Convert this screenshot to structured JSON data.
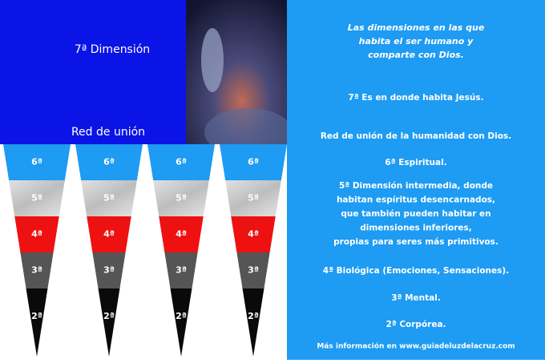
{
  "left_panel": {
    "title": "7ª Dimensión",
    "subtitle": "Red de unión"
  },
  "pennants": [
    {
      "bands": [
        "6ª",
        "5ª",
        "4ª",
        "3ª",
        "2ª"
      ]
    },
    {
      "bands": [
        "6ª",
        "5ª",
        "4ª",
        "3ª",
        "2ª"
      ]
    },
    {
      "bands": [
        "6ª",
        "5ª",
        "4ª",
        "3ª",
        "2ª"
      ]
    },
    {
      "bands": [
        "6ª",
        "5ª",
        "4ª",
        "3ª",
        "2ª"
      ]
    }
  ],
  "right_panel": {
    "heading": [
      "Las dimensiones en las que",
      "habita el ser humano y",
      "comparte con Dios."
    ],
    "items": [
      [
        "7ª Es en donde habita Jesús."
      ],
      [
        "Red de unión de la humanidad con Dios."
      ],
      [
        "6ª Espiritual."
      ],
      [
        "5ª Dimensión intermedia, donde",
        "habitan espíritus desencarnados,",
        "que también pueden habitar en",
        "dimensiones inferiores,",
        "propias para seres más primitivos."
      ],
      [
        "4ª Biológica (Emociones, Sensaciones)."
      ],
      [
        "3ª Mental."
      ],
      [
        "2ª Corpórea."
      ]
    ],
    "footer": "Más información en www.guiadeluzdelacruz.com"
  }
}
